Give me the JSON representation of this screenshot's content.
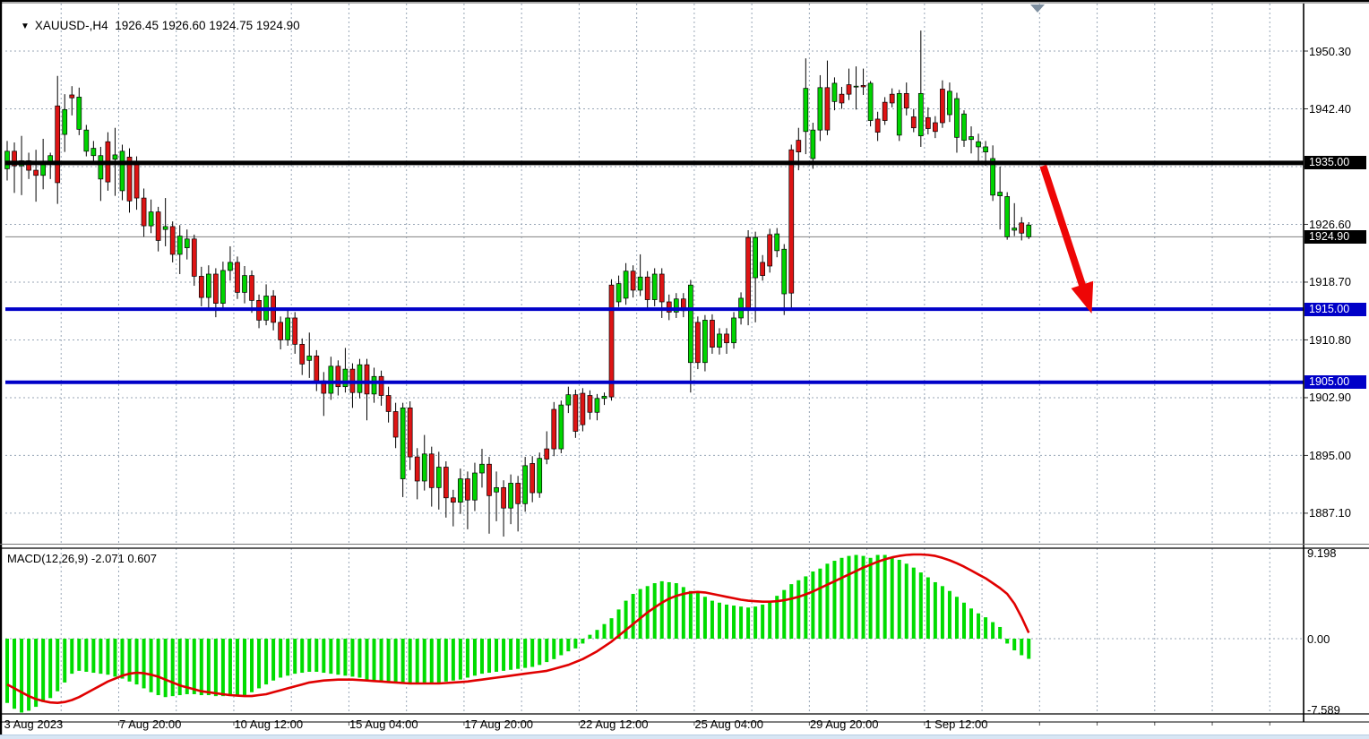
{
  "header": {
    "dropdown_icon": "▼",
    "symbol_period": "XAUUSD-,H4",
    "ohlc_string": "1926.45 1926.60 1924.75 1924.90",
    "open": "1926.45",
    "high": "1926.60",
    "low": "1924.75",
    "close": "1924.90"
  },
  "macd_panel": {
    "label": "MACD(12,26,9) -2.071 0.607",
    "axis_labels": [
      {
        "text": "9.198",
        "value": 9.198
      },
      {
        "text": "0.00",
        "value": 0.0
      },
      {
        "text": "-7.589",
        "value": -7.589
      }
    ]
  },
  "colors": {
    "bull": "#00D400",
    "bear": "#DE1414",
    "wick": "#000000",
    "grid": "#98a6b6",
    "hline_blue": "#0000C8",
    "hline_black": "#000000",
    "current_price_line": "#808080",
    "macd_bar": "#00DC00",
    "macd_signal": "#E00000",
    "arrow": "#EE0606",
    "badge_black": "#000000",
    "badge_blue": "#0000C8",
    "shift_marker": "#7e8fa0"
  },
  "price_axis": {
    "grid_prices": [
      1950.3,
      1942.4,
      1934.5,
      1926.6,
      1918.7,
      1910.8,
      1902.9,
      1895.0,
      1887.1
    ],
    "labels": [
      {
        "text": "1950.30",
        "price": 1950.3
      },
      {
        "text": "1942.40",
        "price": 1942.4
      },
      {
        "text": "1926.60",
        "price": 1926.6
      },
      {
        "text": "1918.70",
        "price": 1918.7
      },
      {
        "text": "1910.80",
        "price": 1910.8
      },
      {
        "text": "1902.90",
        "price": 1902.9
      },
      {
        "text": "1895.00",
        "price": 1895.0
      },
      {
        "text": "1887.10",
        "price": 1887.1
      }
    ],
    "badges": [
      {
        "text": "1935.00",
        "price": 1935.0,
        "bg": "#000000"
      },
      {
        "text": "1924.90",
        "price": 1924.9,
        "bg": "#000000"
      },
      {
        "text": "1915.00",
        "price": 1915.0,
        "bg": "#0000C8"
      },
      {
        "text": "1905.00",
        "price": 1905.0,
        "bg": "#0000C8"
      }
    ]
  },
  "time_axis": {
    "labels": [
      {
        "text": "3 Aug 2023",
        "bar": 0
      },
      {
        "text": "7 Aug 20:00",
        "bar": 16
      },
      {
        "text": "10 Aug 12:00",
        "bar": 32
      },
      {
        "text": "15 Aug 04:00",
        "bar": 48
      },
      {
        "text": "17 Aug 20:00",
        "bar": 64
      },
      {
        "text": "22 Aug 12:00",
        "bar": 80
      },
      {
        "text": "25 Aug 04:00",
        "bar": 96
      },
      {
        "text": "29 Aug 20:00",
        "bar": 112
      },
      {
        "text": "1 Sep 12:00",
        "bar": 128
      }
    ]
  },
  "chart_data": {
    "type": "candlestick+macd",
    "title": "XAUUSD- H4",
    "ylim": [
      1883.0,
      1957.0
    ],
    "grid": "dashed",
    "hlines": [
      {
        "price": 1935.0,
        "color": "#000000",
        "thickness": 5
      },
      {
        "price": 1915.0,
        "color": "#0000C8",
        "thickness": 4
      },
      {
        "price": 1905.0,
        "color": "#0000C8",
        "thickness": 4
      }
    ],
    "current_price": 1924.9,
    "arrow_annotation": {
      "from_price": 1934.6,
      "to_price": 1915.0,
      "from_bar": 144,
      "to_bar": 149,
      "color": "#EE0606"
    },
    "candles_ohlc": [
      [
        1934.2,
        1938.0,
        1932.6,
        1936.6
      ],
      [
        1936.6,
        1937.8,
        1930.9,
        1934.6
      ],
      [
        1934.6,
        1938.7,
        1930.6,
        1935.3
      ],
      [
        1935.3,
        1936.4,
        1932.8,
        1934.0
      ],
      [
        1934.0,
        1936.8,
        1929.7,
        1933.3
      ],
      [
        1933.3,
        1938.3,
        1931.4,
        1935.1
      ],
      [
        1935.1,
        1936.4,
        1932.8,
        1936.0
      ],
      [
        1942.8,
        1946.9,
        1929.4,
        1932.3
      ],
      [
        1938.9,
        1944.4,
        1936.5,
        1942.3
      ],
      [
        1944.3,
        1945.5,
        1941.5,
        1943.9
      ],
      [
        1939.6,
        1945.3,
        1938.8,
        1944.0
      ],
      [
        1936.6,
        1940.2,
        1935.9,
        1939.5
      ],
      [
        1936.0,
        1938.0,
        1934.8,
        1937.0
      ],
      [
        1932.8,
        1937.2,
        1929.8,
        1936.0
      ],
      [
        1937.9,
        1939.2,
        1931.2,
        1932.4
      ],
      [
        1935.5,
        1939.8,
        1930.5,
        1936.1
      ],
      [
        1931.2,
        1937.5,
        1929.9,
        1936.6
      ],
      [
        1935.8,
        1937.0,
        1928.2,
        1929.8
      ],
      [
        1935.0,
        1935.9,
        1928.6,
        1930.2
      ],
      [
        1930.2,
        1931.5,
        1924.9,
        1926.4
      ],
      [
        1926.4,
        1930.0,
        1925.4,
        1928.3
      ],
      [
        1928.3,
        1929.0,
        1922.9,
        1924.4
      ],
      [
        1925.9,
        1930.2,
        1923.6,
        1926.3
      ],
      [
        1926.3,
        1927.0,
        1921.4,
        1922.5
      ],
      [
        1922.5,
        1926.5,
        1919.8,
        1925.0
      ],
      [
        1923.4,
        1925.9,
        1921.8,
        1924.6
      ],
      [
        1924.6,
        1925.2,
        1918.2,
        1919.5
      ],
      [
        1919.5,
        1920.8,
        1915.4,
        1916.6
      ],
      [
        1916.6,
        1921.0,
        1914.8,
        1919.8
      ],
      [
        1919.8,
        1920.6,
        1913.9,
        1915.8
      ],
      [
        1915.8,
        1921.5,
        1915.0,
        1920.3
      ],
      [
        1920.3,
        1923.6,
        1918.9,
        1921.4
      ],
      [
        1921.4,
        1922.2,
        1916.4,
        1917.3
      ],
      [
        1917.3,
        1920.9,
        1915.8,
        1919.6
      ],
      [
        1919.6,
        1920.3,
        1914.5,
        1916.2
      ],
      [
        1916.2,
        1917.0,
        1912.4,
        1913.5
      ],
      [
        1913.5,
        1918.4,
        1912.8,
        1916.8
      ],
      [
        1916.8,
        1917.6,
        1912.1,
        1913.2
      ],
      [
        1913.2,
        1914.0,
        1909.5,
        1910.8
      ],
      [
        1910.8,
        1915.0,
        1910.0,
        1913.8
      ],
      [
        1913.8,
        1914.6,
        1908.9,
        1910.2
      ],
      [
        1910.2,
        1911.0,
        1906.0,
        1907.5
      ],
      [
        1908.0,
        1911.8,
        1905.6,
        1908.6
      ],
      [
        1908.6,
        1909.4,
        1903.8,
        1905.2
      ],
      [
        1905.2,
        1906.4,
        1900.4,
        1903.5
      ],
      [
        1903.5,
        1908.5,
        1902.6,
        1907.2
      ],
      [
        1907.2,
        1908.0,
        1903.2,
        1904.4
      ],
      [
        1904.4,
        1909.7,
        1903.6,
        1906.8
      ],
      [
        1906.8,
        1907.6,
        1901.5,
        1903.6
      ],
      [
        1903.6,
        1908.2,
        1902.8,
        1907.4
      ],
      [
        1907.4,
        1908.2,
        1899.8,
        1903.4
      ],
      [
        1903.4,
        1907.0,
        1902.2,
        1905.8
      ],
      [
        1905.8,
        1906.6,
        1901.8,
        1903.2
      ],
      [
        1903.2,
        1904.4,
        1899.5,
        1901.0
      ],
      [
        1901.0,
        1902.2,
        1896.0,
        1897.5
      ],
      [
        1891.8,
        1902.2,
        1889.3,
        1901.5
      ],
      [
        1901.5,
        1902.4,
        1893.0,
        1894.8
      ],
      [
        1894.8,
        1896.0,
        1889.0,
        1891.5
      ],
      [
        1891.5,
        1897.8,
        1890.2,
        1895.2
      ],
      [
        1895.2,
        1896.2,
        1888.0,
        1890.6
      ],
      [
        1890.6,
        1895.5,
        1887.6,
        1893.4
      ],
      [
        1893.4,
        1894.2,
        1886.5,
        1889.2
      ],
      [
        1889.2,
        1890.3,
        1885.3,
        1888.6
      ],
      [
        1888.6,
        1893.2,
        1887.0,
        1891.8
      ],
      [
        1891.8,
        1892.8,
        1884.9,
        1888.9
      ],
      [
        1888.9,
        1894.0,
        1887.4,
        1892.6
      ],
      [
        1892.6,
        1895.9,
        1890.6,
        1893.8
      ],
      [
        1893.8,
        1894.8,
        1884.3,
        1889.5
      ],
      [
        1890.0,
        1892.8,
        1886.0,
        1890.6
      ],
      [
        1890.6,
        1891.6,
        1883.9,
        1887.8
      ],
      [
        1887.8,
        1892.4,
        1885.6,
        1891.2
      ],
      [
        1891.2,
        1892.2,
        1884.6,
        1888.4
      ],
      [
        1888.4,
        1894.8,
        1887.3,
        1893.6
      ],
      [
        1893.9,
        1894.9,
        1888.6,
        1889.9
      ],
      [
        1889.9,
        1895.4,
        1889.2,
        1894.6
      ],
      [
        1895.9,
        1898.3,
        1893.8,
        1894.5
      ],
      [
        1901.3,
        1902.3,
        1894.9,
        1895.9
      ],
      [
        1895.9,
        1902.5,
        1895.3,
        1901.9
      ],
      [
        1901.9,
        1904.4,
        1900.8,
        1903.3
      ],
      [
        1903.3,
        1904.0,
        1897.4,
        1898.3
      ],
      [
        1903.5,
        1904.2,
        1898.3,
        1899.2
      ],
      [
        1903.2,
        1903.9,
        1899.9,
        1900.9
      ],
      [
        1900.9,
        1903.4,
        1899.8,
        1902.8
      ],
      [
        1902.8,
        1903.6,
        1901.9,
        1903.1
      ],
      [
        1918.3,
        1919.1,
        1902.5,
        1903.0
      ],
      [
        1916.0,
        1919.6,
        1915.3,
        1918.5
      ],
      [
        1916.5,
        1921.3,
        1915.6,
        1920.2
      ],
      [
        1920.2,
        1921.0,
        1916.6,
        1917.6
      ],
      [
        1917.6,
        1922.5,
        1916.8,
        1919.4
      ],
      [
        1919.4,
        1920.2,
        1914.9,
        1916.3
      ],
      [
        1916.3,
        1920.6,
        1915.4,
        1919.8
      ],
      [
        1919.8,
        1920.6,
        1913.8,
        1916.0
      ],
      [
        1916.0,
        1917.0,
        1913.5,
        1914.6
      ],
      [
        1914.6,
        1917.2,
        1913.8,
        1916.4
      ],
      [
        1916.4,
        1917.2,
        1913.9,
        1914.8
      ],
      [
        1907.7,
        1919.0,
        1903.6,
        1918.3
      ],
      [
        1913.2,
        1914.0,
        1906.8,
        1907.7
      ],
      [
        1907.7,
        1914.2,
        1906.5,
        1913.5
      ],
      [
        1913.5,
        1914.3,
        1908.9,
        1909.8
      ],
      [
        1909.8,
        1912.4,
        1908.8,
        1911.6
      ],
      [
        1911.6,
        1912.4,
        1908.9,
        1910.4
      ],
      [
        1910.4,
        1914.6,
        1909.6,
        1913.8
      ],
      [
        1913.8,
        1917.3,
        1912.9,
        1916.5
      ],
      [
        1924.8,
        1925.8,
        1912.8,
        1915.0
      ],
      [
        1919.3,
        1925.6,
        1913.2,
        1924.8
      ],
      [
        1921.4,
        1922.4,
        1918.9,
        1919.6
      ],
      [
        1925.2,
        1926.0,
        1920.0,
        1920.9
      ],
      [
        1923.0,
        1926.1,
        1922.1,
        1925.3
      ],
      [
        1917.1,
        1923.9,
        1914.2,
        1923.2
      ],
      [
        1936.8,
        1937.5,
        1914.8,
        1917.2
      ],
      [
        1938.1,
        1939.8,
        1934.0,
        1936.5
      ],
      [
        1939.3,
        1949.3,
        1936.2,
        1945.2
      ],
      [
        1935.6,
        1940.5,
        1934.2,
        1939.5
      ],
      [
        1939.5,
        1947.0,
        1938.0,
        1945.3
      ],
      [
        1945.3,
        1949.0,
        1938.8,
        1939.5
      ],
      [
        1943.4,
        1946.7,
        1942.2,
        1945.9
      ],
      [
        1944.4,
        1945.4,
        1942.4,
        1943.2
      ],
      [
        1945.7,
        1947.9,
        1943.6,
        1944.4
      ],
      [
        1945.4,
        1948.2,
        1942.3,
        1945.5
      ],
      [
        1945.6,
        1947.9,
        1944.3,
        1945.4
      ],
      [
        1940.8,
        1946.2,
        1940.0,
        1945.9
      ],
      [
        1941.0,
        1942.0,
        1938.0,
        1939.2
      ],
      [
        1943.3,
        1944.0,
        1940.2,
        1940.8
      ],
      [
        1944.4,
        1945.2,
        1942.6,
        1943.2
      ],
      [
        1938.8,
        1945.0,
        1938.0,
        1944.5
      ],
      [
        1944.5,
        1946.0,
        1941.5,
        1942.5
      ],
      [
        1941.3,
        1942.4,
        1939.2,
        1939.8
      ],
      [
        1938.7,
        1953.1,
        1937.2,
        1944.5
      ],
      [
        1941.2,
        1942.6,
        1938.9,
        1939.7
      ],
      [
        1940.5,
        1941.4,
        1938.4,
        1939.3
      ],
      [
        1945.1,
        1946.3,
        1939.8,
        1940.5
      ],
      [
        1941.6,
        1946.0,
        1940.6,
        1944.8
      ],
      [
        1938.5,
        1944.6,
        1936.4,
        1943.8
      ],
      [
        1938.1,
        1942.2,
        1937.2,
        1941.7
      ],
      [
        1938.2,
        1940.0,
        1936.3,
        1938.6
      ],
      [
        1937.2,
        1939.0,
        1934.8,
        1937.9
      ],
      [
        1936.5,
        1938.0,
        1934.6,
        1937.2
      ],
      [
        1930.6,
        1937.4,
        1929.8,
        1935.6
      ],
      [
        1930.5,
        1934.5,
        1925.9,
        1931.0
      ],
      [
        1924.9,
        1931.0,
        1924.5,
        1930.4
      ],
      [
        1925.8,
        1929.5,
        1925.0,
        1926.1
      ],
      [
        1926.8,
        1927.6,
        1924.4,
        1925.4
      ],
      [
        1924.9,
        1926.9,
        1924.6,
        1926.5
      ]
    ],
    "macd": {
      "params": "12,26,9",
      "last_macd": -2.071,
      "last_signal": 0.607,
      "ylim": [
        -7.589,
        9.198
      ],
      "histogram": [
        -6.6,
        -7.2,
        -7.589,
        -7.4,
        -7.0,
        -6.5,
        -6.1,
        -5.4,
        -4.5,
        -3.6,
        -3.3,
        -3.4,
        -3.5,
        -3.6,
        -3.7,
        -3.9,
        -4.1,
        -4.4,
        -4.7,
        -5.1,
        -5.5,
        -5.8,
        -6.0,
        -5.9,
        -5.8,
        -5.7,
        -5.7,
        -5.8,
        -5.8,
        -5.9,
        -5.9,
        -5.9,
        -5.9,
        -5.8,
        -5.5,
        -5.1,
        -4.7,
        -4.3,
        -4.0,
        -3.8,
        -3.6,
        -3.5,
        -3.4,
        -3.4,
        -3.5,
        -3.6,
        -3.7,
        -3.8,
        -3.9,
        -4.0,
        -4.2,
        -4.3,
        -4.4,
        -4.5,
        -4.6,
        -4.6,
        -4.7,
        -4.7,
        -4.6,
        -4.6,
        -4.5,
        -4.4,
        -4.3,
        -4.2,
        -4.0,
        -3.8,
        -3.6,
        -3.5,
        -3.4,
        -3.3,
        -3.2,
        -3.1,
        -3.0,
        -2.9,
        -2.7,
        -2.4,
        -2.1,
        -1.7,
        -1.3,
        -1.0,
        -0.5,
        0.4,
        0.9,
        1.5,
        2.1,
        3.0,
        3.9,
        4.6,
        5.1,
        5.4,
        5.7,
        5.9,
        5.8,
        5.7,
        5.3,
        4.9,
        4.7,
        4.3,
        3.9,
        3.7,
        3.5,
        3.4,
        3.3,
        3.2,
        3.3,
        3.5,
        3.9,
        4.4,
        5.0,
        5.6,
        6.0,
        6.4,
        6.9,
        7.2,
        7.7,
        8.0,
        8.3,
        8.5,
        8.6,
        8.5,
        8.3,
        8.6,
        8.6,
        8.4,
        8.1,
        7.7,
        7.3,
        6.8,
        6.3,
        5.8,
        5.4,
        4.9,
        4.3,
        3.7,
        3.1,
        2.6,
        2.2,
        1.7,
        1.2,
        -0.5,
        -1.2,
        -1.7,
        -2.071
      ],
      "signal": [
        -4.7,
        -5.1,
        -5.5,
        -5.9,
        -6.2,
        -6.4,
        -6.55,
        -6.6,
        -6.5,
        -6.3,
        -6.0,
        -5.6,
        -5.2,
        -4.8,
        -4.4,
        -4.1,
        -3.8,
        -3.6,
        -3.5,
        -3.55,
        -3.7,
        -3.9,
        -4.2,
        -4.5,
        -4.8,
        -5.0,
        -5.2,
        -5.4,
        -5.5,
        -5.6,
        -5.7,
        -5.8,
        -5.85,
        -5.9,
        -5.9,
        -5.8,
        -5.7,
        -5.5,
        -5.3,
        -5.1,
        -4.9,
        -4.7,
        -4.5,
        -4.4,
        -4.3,
        -4.25,
        -4.2,
        -4.2,
        -4.2,
        -4.25,
        -4.3,
        -4.35,
        -4.4,
        -4.45,
        -4.5,
        -4.55,
        -4.6,
        -4.6,
        -4.6,
        -4.6,
        -4.6,
        -4.55,
        -4.5,
        -4.45,
        -4.4,
        -4.3,
        -4.2,
        -4.1,
        -4.0,
        -3.9,
        -3.8,
        -3.7,
        -3.6,
        -3.5,
        -3.4,
        -3.3,
        -3.1,
        -2.9,
        -2.7,
        -2.4,
        -2.1,
        -1.7,
        -1.3,
        -0.8,
        -0.3,
        0.3,
        0.9,
        1.5,
        2.1,
        2.7,
        3.2,
        3.7,
        4.1,
        4.4,
        4.6,
        4.75,
        4.8,
        4.75,
        4.6,
        4.45,
        4.3,
        4.15,
        4.0,
        3.9,
        3.85,
        3.8,
        3.8,
        3.85,
        3.95,
        4.1,
        4.3,
        4.55,
        4.85,
        5.2,
        5.55,
        5.9,
        6.25,
        6.6,
        6.95,
        7.3,
        7.6,
        7.9,
        8.15,
        8.35,
        8.5,
        8.6,
        8.65,
        8.65,
        8.6,
        8.5,
        8.3,
        8.05,
        7.75,
        7.4,
        7.0,
        6.6,
        6.2,
        5.7,
        5.2,
        4.6,
        3.6,
        2.2,
        0.607
      ]
    }
  }
}
